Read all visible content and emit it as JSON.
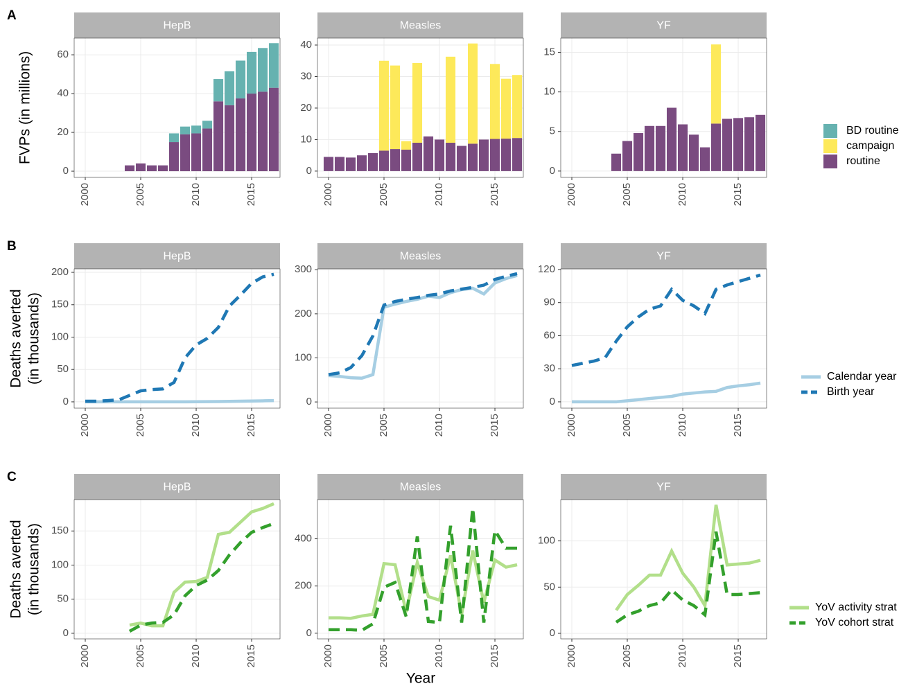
{
  "xlabel": "Year",
  "chart_data": [
    {
      "type": "bar",
      "tag": "A",
      "ylabel": [
        "FVPs (in millions)"
      ],
      "xlim": [
        1999,
        2017.56
      ],
      "xticks": [
        2000,
        2005,
        2010,
        2015
      ],
      "series": [
        {
          "name": "BD routine",
          "color": "#66b2b0"
        },
        {
          "name": "campaign",
          "color": "#fde95a"
        },
        {
          "name": "routine",
          "color": "#7a4b80"
        }
      ],
      "panels": [
        {
          "title": "HepB",
          "ylim": [
            -3.2,
            68.6
          ],
          "yticks": [
            0,
            20,
            40,
            60
          ],
          "x": [
            2004,
            2005,
            2006,
            2007,
            2008,
            2009,
            2010,
            2011,
            2012,
            2013,
            2014,
            2015,
            2016,
            2017
          ],
          "series": [
            {
              "values": [
                0,
                0,
                0,
                0,
                4.5,
                4,
                4,
                4,
                11.5,
                17.5,
                19.5,
                21.5,
                22.5,
                23
              ]
            },
            {
              "values": [
                0,
                0,
                0,
                0,
                0,
                0,
                0,
                0,
                0,
                0,
                0,
                0,
                0,
                0
              ]
            },
            {
              "values": [
                3,
                4,
                3,
                3,
                15,
                19,
                19.5,
                22,
                36,
                34,
                37.5,
                40,
                41,
                43
              ]
            }
          ]
        },
        {
          "title": "Measles",
          "ylim": [
            -2,
            42.2
          ],
          "yticks": [
            0,
            10,
            20,
            30,
            40
          ],
          "x": [
            2000,
            2001,
            2002,
            2003,
            2004,
            2005,
            2006,
            2007,
            2008,
            2009,
            2010,
            2011,
            2012,
            2013,
            2014,
            2015,
            2016,
            2017
          ],
          "series": [
            {
              "values": [
                0,
                0,
                0,
                0,
                0,
                0,
                0,
                0,
                0,
                0,
                0,
                0,
                0,
                0,
                0,
                0,
                0,
                0
              ]
            },
            {
              "values": [
                0,
                0,
                0,
                0,
                0,
                28.5,
                26.5,
                2.7,
                25.3,
                0,
                0,
                27.3,
                0,
                31.8,
                0,
                23.8,
                19,
                20
              ]
            },
            {
              "values": [
                4.5,
                4.5,
                4.3,
                5,
                5.7,
                6.5,
                7,
                6.8,
                9,
                11,
                10,
                9,
                8,
                8.7,
                10,
                10.2,
                10.3,
                10.5
              ]
            }
          ]
        },
        {
          "title": "YF",
          "ylim": [
            -0.8,
            16.8
          ],
          "yticks": [
            0,
            5,
            10,
            15
          ],
          "x": [
            2004,
            2005,
            2006,
            2007,
            2008,
            2009,
            2010,
            2011,
            2012,
            2013,
            2014,
            2015,
            2016,
            2017
          ],
          "series": [
            {
              "values": [
                0,
                0,
                0,
                0,
                0,
                0,
                0,
                0,
                0,
                0,
                0,
                0,
                0,
                0
              ]
            },
            {
              "values": [
                0,
                0,
                0,
                0,
                0,
                0,
                0,
                0,
                0,
                10,
                0,
                0,
                0,
                0
              ]
            },
            {
              "values": [
                2.2,
                3.8,
                4.8,
                5.7,
                5.7,
                8,
                5.9,
                4.6,
                3,
                6,
                6.6,
                6.7,
                6.8,
                7.1
              ]
            }
          ]
        }
      ]
    },
    {
      "type": "line",
      "tag": "B",
      "ylabel": [
        "Deaths averted",
        "(in thousands)"
      ],
      "xlim": [
        1999,
        2017.56
      ],
      "xticks": [
        2000,
        2005,
        2010,
        2015
      ],
      "series": [
        {
          "name": "Calendar year",
          "color": "#a6cee3",
          "dashed": false
        },
        {
          "name": "Birth year",
          "color": "#1f78b4",
          "dashed": true
        }
      ],
      "panels": [
        {
          "title": "HepB",
          "ylim": [
            -9.7,
            205.4
          ],
          "yticks": [
            0,
            50,
            100,
            150,
            200
          ],
          "x": [
            2000,
            2001,
            2002,
            2003,
            2004,
            2005,
            2006,
            2007,
            2008,
            2009,
            2010,
            2011,
            2012,
            2013,
            2014,
            2015,
            2016,
            2017
          ],
          "series": [
            {
              "values": [
                0,
                0,
                0,
                0,
                0,
                0,
                0,
                0,
                0,
                0,
                0.2,
                0.3,
                0.5,
                0.7,
                1,
                1.3,
                1.6,
                2
              ]
            },
            {
              "values": [
                1,
                1,
                2,
                3,
                10,
                17,
                19,
                20,
                30,
                68,
                88,
                98,
                115,
                148,
                165,
                183,
                193,
                197
              ]
            }
          ]
        },
        {
          "title": "Measles",
          "ylim": [
            -14,
            302
          ],
          "yticks": [
            0,
            100,
            200,
            300
          ],
          "x": [
            2000,
            2001,
            2002,
            2003,
            2004,
            2005,
            2006,
            2007,
            2008,
            2009,
            2010,
            2011,
            2012,
            2013,
            2014,
            2015,
            2016,
            2017
          ],
          "series": [
            {
              "values": [
                60,
                58,
                55,
                54,
                62,
                215,
                222,
                228,
                233,
                240,
                237,
                248,
                255,
                258,
                245,
                270,
                280,
                287
              ]
            },
            {
              "values": [
                62,
                66,
                78,
                105,
                150,
                220,
                228,
                233,
                237,
                242,
                245,
                252,
                256,
                260,
                265,
                278,
                285,
                291
              ]
            }
          ]
        },
        {
          "title": "YF",
          "ylim": [
            -5.7,
            120.6
          ],
          "yticks": [
            0,
            30,
            60,
            90,
            120
          ],
          "x": [
            2000,
            2001,
            2002,
            2003,
            2004,
            2005,
            2006,
            2007,
            2008,
            2009,
            2010,
            2011,
            2012,
            2013,
            2014,
            2015,
            2016,
            2017
          ],
          "series": [
            {
              "values": [
                0,
                0,
                0,
                0,
                0,
                1,
                2,
                3,
                4,
                5,
                7,
                8,
                9,
                9.5,
                13,
                14.5,
                15.5,
                17
              ]
            },
            {
              "values": [
                33,
                35,
                37,
                40,
                55,
                68,
                77,
                84,
                87,
                102,
                92,
                87,
                80,
                102,
                106,
                109,
                112,
                115
              ]
            }
          ]
        }
      ]
    },
    {
      "type": "line",
      "tag": "C",
      "ylabel": [
        "Deaths averted",
        "(in thousands)"
      ],
      "xlim": [
        1999,
        2017.56
      ],
      "xticks": [
        2000,
        2005,
        2010,
        2015
      ],
      "series": [
        {
          "name": "YoV activity strat",
          "color": "#b2df8a",
          "dashed": false
        },
        {
          "name": "YoV cohort strat",
          "color": "#33a02c",
          "dashed": true
        }
      ],
      "panels": [
        {
          "title": "HepB",
          "ylim": [
            -8.2,
            196
          ],
          "yticks": [
            0,
            50,
            100,
            150
          ],
          "x": [
            2004,
            2005,
            2006,
            2007,
            2008,
            2009,
            2010,
            2011,
            2012,
            2013,
            2014,
            2015,
            2016,
            2017
          ],
          "series": [
            {
              "values": [
                12,
                15,
                11,
                11,
                60,
                75,
                76,
                82,
                145,
                148,
                163,
                178,
                183,
                190
              ]
            },
            {
              "values": [
                3,
                12,
                15,
                16,
                27,
                55,
                70,
                78,
                92,
                115,
                133,
                148,
                155,
                161
              ]
            }
          ]
        },
        {
          "title": "Measles",
          "ylim": [
            -24,
            566
          ],
          "yticks": [
            0,
            200,
            400
          ],
          "x": [
            2000,
            2001,
            2002,
            2003,
            2004,
            2005,
            2006,
            2007,
            2008,
            2009,
            2010,
            2011,
            2012,
            2013,
            2014,
            2015,
            2016,
            2017
          ],
          "series": [
            {
              "values": [
                65,
                65,
                63,
                73,
                80,
                295,
                290,
                90,
                300,
                155,
                140,
                330,
                80,
                350,
                130,
                310,
                280,
                290
              ]
            },
            {
              "values": [
                15,
                15,
                15,
                12,
                40,
                195,
                215,
                70,
                410,
                50,
                45,
                455,
                45,
                530,
                45,
                435,
                360,
                360
              ]
            }
          ]
        },
        {
          "title": "YF",
          "ylim": [
            -6,
            144.7
          ],
          "yticks": [
            0,
            50,
            100
          ],
          "x": [
            2004,
            2005,
            2006,
            2007,
            2008,
            2009,
            2010,
            2011,
            2012,
            2013,
            2014,
            2015,
            2016,
            2017
          ],
          "series": [
            {
              "values": [
                25,
                42,
                52,
                63,
                63,
                89,
                65,
                50,
                30,
                139,
                74,
                75,
                76,
                79
              ]
            },
            {
              "values": [
                12,
                20,
                24,
                30,
                33,
                47,
                36,
                30,
                20,
                110,
                42,
                42,
                43,
                44
              ]
            }
          ]
        }
      ]
    }
  ]
}
